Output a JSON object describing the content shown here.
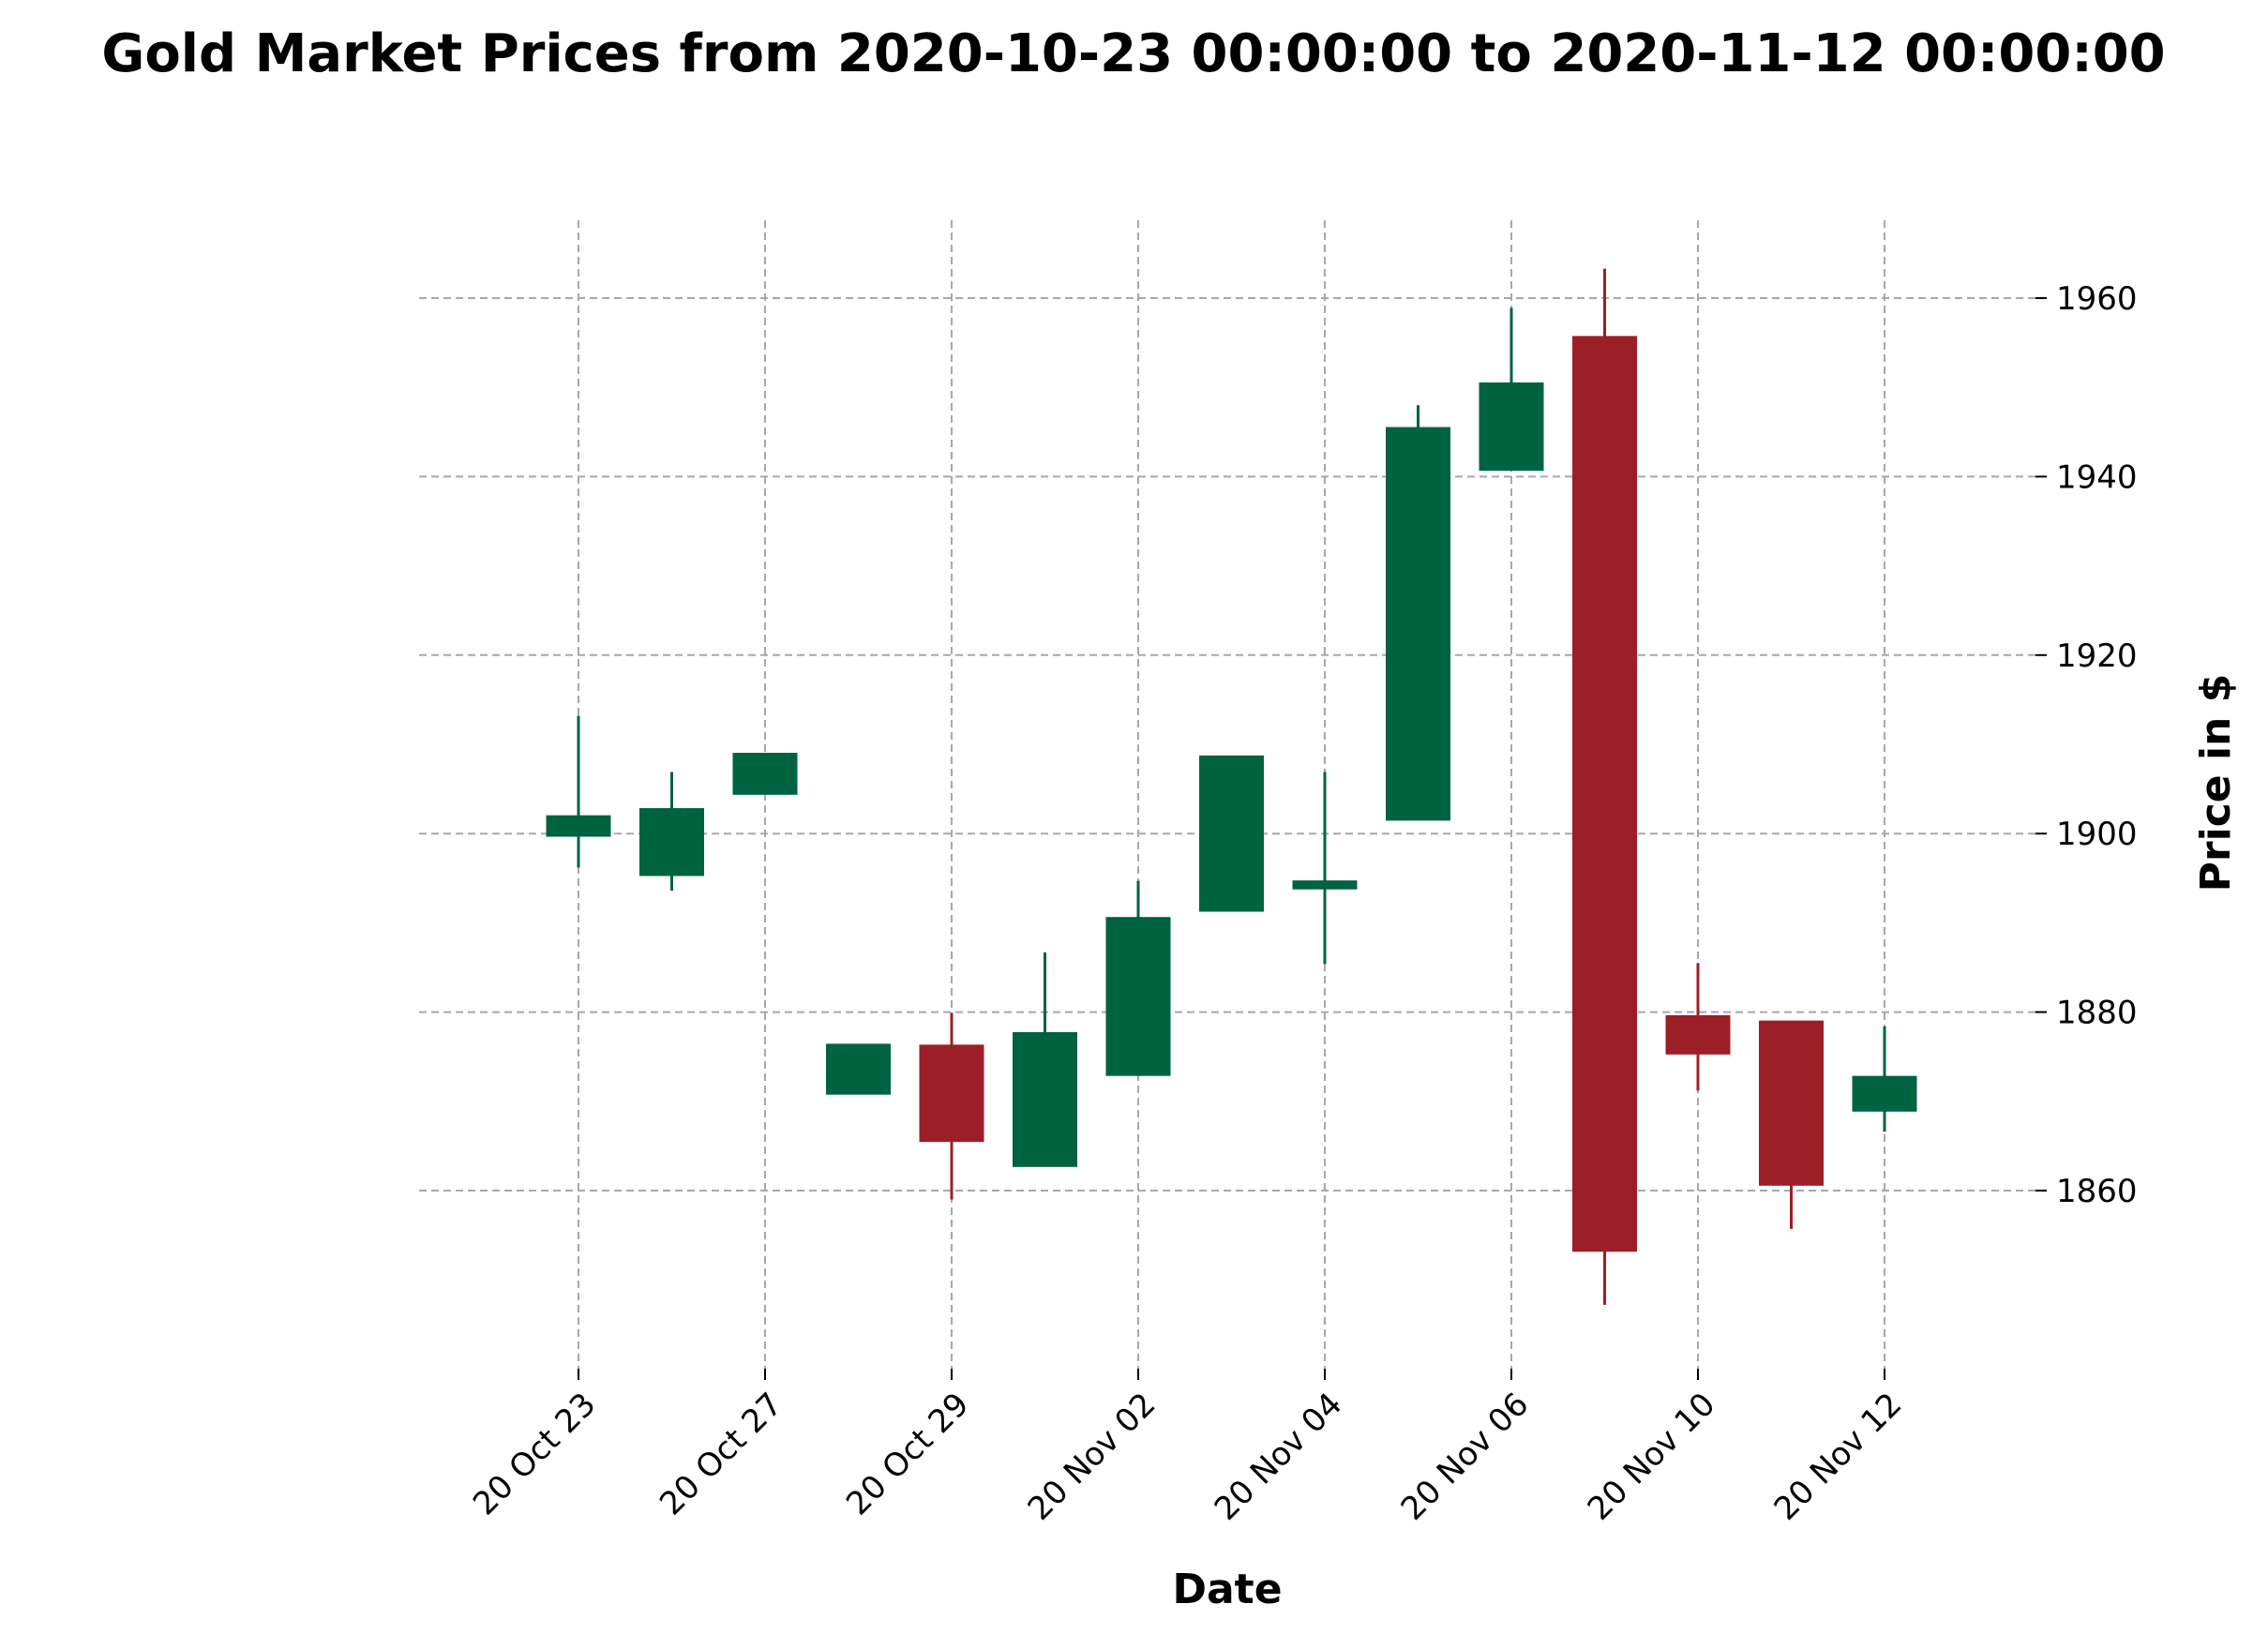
{
  "chart_data": {
    "type": "candlestick",
    "title": "Gold Market Prices from 2020-10-23 00:00:00 to 2020-11-12 00:00:00",
    "xlabel": "Date",
    "ylabel": "Price in $",
    "ylim": [
      1843,
      1970
    ],
    "y_ticks": [
      1860,
      1880,
      1900,
      1920,
      1940,
      1960
    ],
    "y_tick_labels": [
      "1860",
      "1880",
      "1900",
      "1920",
      "1940",
      "1960"
    ],
    "y_axis_position": "right",
    "x_tick_labels": [
      "20 Oct 23",
      "20 Oct 27",
      "20 Oct 29",
      "20 Nov 02",
      "20 Nov 04",
      "20 Nov 06",
      "20 Nov 10",
      "20 Nov 12"
    ],
    "x_tick_indices": [
      0,
      2,
      4,
      6,
      8,
      10,
      12,
      14
    ],
    "grid": true,
    "up_color": "#006340",
    "down_color": "#9c1f28",
    "candles": [
      {
        "date": "2020-10-23",
        "open": 1899.7,
        "high": 1913.2,
        "low": 1896.2,
        "close": 1902.0
      },
      {
        "date": "2020-10-26",
        "open": 1895.3,
        "high": 1906.9,
        "low": 1893.6,
        "close": 1902.8
      },
      {
        "date": "2020-10-27",
        "open": 1904.4,
        "high": 1909.0,
        "low": 1904.4,
        "close": 1909.0
      },
      {
        "date": "2020-10-28",
        "open": 1870.8,
        "high": 1876.4,
        "low": 1870.8,
        "close": 1876.4
      },
      {
        "date": "2020-10-29",
        "open": 1876.3,
        "high": 1879.9,
        "low": 1859.0,
        "close": 1865.5
      },
      {
        "date": "2020-10-30",
        "open": 1862.7,
        "high": 1886.7,
        "low": 1862.7,
        "close": 1877.7
      },
      {
        "date": "2020-11-02",
        "open": 1872.9,
        "high": 1894.7,
        "low": 1872.9,
        "close": 1890.6
      },
      {
        "date": "2020-11-03",
        "open": 1891.3,
        "high": 1908.7,
        "low": 1891.3,
        "close": 1908.7
      },
      {
        "date": "2020-11-04",
        "open": 1893.8,
        "high": 1906.9,
        "low": 1885.4,
        "close": 1894.7
      },
      {
        "date": "2020-11-05",
        "open": 1901.5,
        "high": 1948.0,
        "low": 1901.5,
        "close": 1945.5
      },
      {
        "date": "2020-11-06",
        "open": 1940.7,
        "high": 1958.9,
        "low": 1940.7,
        "close": 1950.5
      },
      {
        "date": "2020-11-09",
        "open": 1955.7,
        "high": 1963.3,
        "low": 1847.2,
        "close": 1853.2
      },
      {
        "date": "2020-11-10",
        "open": 1879.6,
        "high": 1885.5,
        "low": 1871.2,
        "close": 1875.3
      },
      {
        "date": "2020-11-11",
        "open": 1879.0,
        "high": 1879.0,
        "low": 1855.7,
        "close": 1860.6
      },
      {
        "date": "2020-11-12",
        "open": 1868.9,
        "high": 1878.4,
        "low": 1866.6,
        "close": 1872.8
      }
    ]
  }
}
